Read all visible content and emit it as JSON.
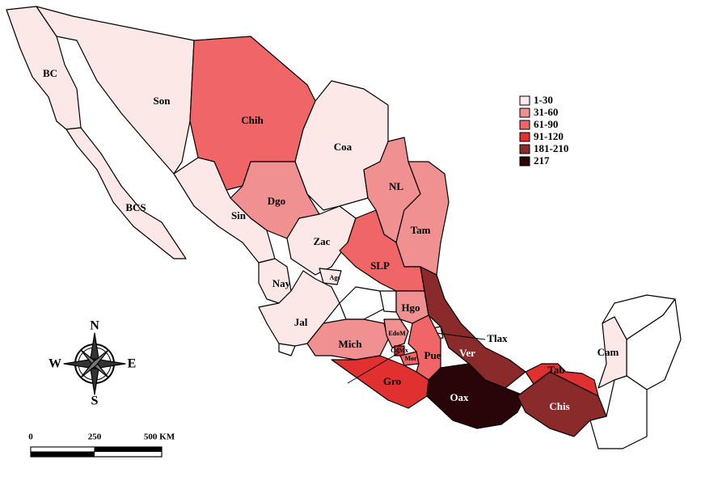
{
  "map": {
    "regions": [
      {
        "label": "BC",
        "color": "#fde8e8"
      },
      {
        "label": "BCS",
        "color": "#fde8e8"
      },
      {
        "label": "Son",
        "color": "#fde8e8"
      },
      {
        "label": "Chih",
        "color": "#f06666"
      },
      {
        "label": "Coa",
        "color": "#fde8e8"
      },
      {
        "label": "NL",
        "color": "#f09090"
      },
      {
        "label": "Tam",
        "color": "#f09090"
      },
      {
        "label": "Dgo",
        "color": "#f09090"
      },
      {
        "label": "Sin",
        "color": "#fde8e8"
      },
      {
        "label": "Zac",
        "color": "#fde8e8"
      },
      {
        "label": "SLP",
        "color": "#f06666"
      },
      {
        "label": "Nay",
        "color": "#fde8e8"
      },
      {
        "label": "Ags",
        "color": "#fde8e8"
      },
      {
        "label": "Jal",
        "color": "#fde8e8"
      },
      {
        "label": "Hgo",
        "color": "#f09090"
      },
      {
        "label": "Mich",
        "color": "#f09090"
      },
      {
        "label": "EdoM",
        "color": "#f09090"
      },
      {
        "label": "CdMx",
        "color": "#e03030"
      },
      {
        "label": "Mor",
        "color": "#f06666"
      },
      {
        "label": "Tlax",
        "color": "#fde8e8"
      },
      {
        "label": "Pue",
        "color": "#f06666"
      },
      {
        "label": "Ver",
        "color": "#8b2a2a"
      },
      {
        "label": "Gro",
        "color": "#e03030"
      },
      {
        "label": "Oax",
        "color": "#2a0508"
      },
      {
        "label": "Tab",
        "color": "#e03030"
      },
      {
        "label": "Chis",
        "color": "#8b2a2a"
      },
      {
        "label": "Cam",
        "color": "#fde8e8"
      }
    ],
    "legend": [
      {
        "label": "1-30",
        "color": "#fde8e8"
      },
      {
        "label": "31-60",
        "color": "#f09090"
      },
      {
        "label": "61-90",
        "color": "#f06666"
      },
      {
        "label": "91-120",
        "color": "#e03030"
      },
      {
        "label": "181-210",
        "color": "#8b2a2a"
      },
      {
        "label": "217",
        "color": "#2a0508"
      }
    ],
    "compass": {
      "north": "N",
      "south": "S",
      "east": "E",
      "west": "W"
    },
    "scale_bar": {
      "labels": [
        "0",
        "250",
        "500 KM"
      ]
    }
  }
}
